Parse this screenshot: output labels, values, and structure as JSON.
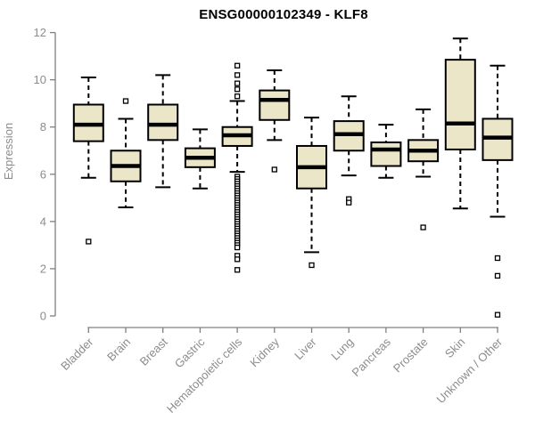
{
  "title": "ENSG00000102349 - KLF8",
  "chart_data": {
    "type": "boxplot",
    "title": "ENSG00000102349 - KLF8",
    "xlabel": "",
    "ylabel": "Expression",
    "ylim": [
      0,
      12
    ],
    "yticks": [
      0,
      2,
      4,
      6,
      8,
      10,
      12
    ],
    "grid": false,
    "legend": false,
    "categories": [
      "Bladder",
      "Brain",
      "Breast",
      "Gastric",
      "Hematopoietic cells",
      "Kidney",
      "Liver",
      "Lung",
      "Pancreas",
      "Prostate",
      "Skin",
      "Unknown / Other"
    ],
    "series": [
      {
        "name": "Bladder",
        "whisker_low": 5.85,
        "q1": 7.4,
        "median": 8.1,
        "q3": 8.95,
        "whisker_high": 10.1,
        "outliers": [
          3.15
        ]
      },
      {
        "name": "Brain",
        "whisker_low": 4.6,
        "q1": 5.7,
        "median": 6.35,
        "q3": 7.0,
        "whisker_high": 8.35,
        "outliers": [
          9.1
        ]
      },
      {
        "name": "Breast",
        "whisker_low": 5.45,
        "q1": 7.45,
        "median": 8.1,
        "q3": 8.95,
        "whisker_high": 10.2,
        "outliers": []
      },
      {
        "name": "Gastric",
        "whisker_low": 5.4,
        "q1": 6.3,
        "median": 6.7,
        "q3": 7.1,
        "whisker_high": 7.9,
        "outliers": []
      },
      {
        "name": "Hematopoietic cells",
        "whisker_low": 6.1,
        "q1": 7.2,
        "median": 7.65,
        "q3": 8.0,
        "whisker_high": 9.1,
        "outliers": [
          10.6,
          10.2,
          9.85,
          9.6,
          9.3,
          5.9,
          5.8,
          5.7,
          5.6,
          5.5,
          5.4,
          5.3,
          5.2,
          5.1,
          5.0,
          4.9,
          4.8,
          4.7,
          4.6,
          4.5,
          4.4,
          4.3,
          4.2,
          4.1,
          4.0,
          3.9,
          3.8,
          3.7,
          3.6,
          3.5,
          3.4,
          3.3,
          3.2,
          3.1,
          3.0,
          2.9,
          2.55,
          2.4,
          1.95
        ]
      },
      {
        "name": "Kidney",
        "whisker_low": 7.45,
        "q1": 8.3,
        "median": 9.15,
        "q3": 9.55,
        "whisker_high": 10.4,
        "outliers": [
          6.2
        ]
      },
      {
        "name": "Liver",
        "whisker_low": 2.7,
        "q1": 5.4,
        "median": 6.3,
        "q3": 7.2,
        "whisker_high": 8.4,
        "outliers": [
          2.15
        ]
      },
      {
        "name": "Lung",
        "whisker_low": 5.95,
        "q1": 7.0,
        "median": 7.7,
        "q3": 8.25,
        "whisker_high": 9.3,
        "outliers": [
          4.95,
          4.8
        ]
      },
      {
        "name": "Pancreas",
        "whisker_low": 5.85,
        "q1": 6.35,
        "median": 7.05,
        "q3": 7.35,
        "whisker_high": 8.1,
        "outliers": []
      },
      {
        "name": "Prostate",
        "whisker_low": 5.9,
        "q1": 6.55,
        "median": 7.0,
        "q3": 7.45,
        "whisker_high": 8.75,
        "outliers": [
          3.75
        ]
      },
      {
        "name": "Skin",
        "whisker_low": 4.55,
        "q1": 7.05,
        "median": 8.15,
        "q3": 10.85,
        "whisker_high": 11.75,
        "outliers": []
      },
      {
        "name": "Unknown / Other",
        "whisker_low": 4.2,
        "q1": 6.6,
        "median": 7.55,
        "q3": 8.35,
        "whisker_high": 10.6,
        "outliers": [
          2.45,
          1.7,
          0.05
        ]
      }
    ],
    "colors": {
      "box_fill": "#ece6c9",
      "box_stroke": "#000000",
      "median": "#000000",
      "whisker": "#000000",
      "outlier_fill": "#ffffff",
      "outlier_stroke": "#000000",
      "axis_line": "#808080",
      "axis_text": "#8c8c8c",
      "title": "#000000",
      "background": "#ffffff"
    }
  }
}
